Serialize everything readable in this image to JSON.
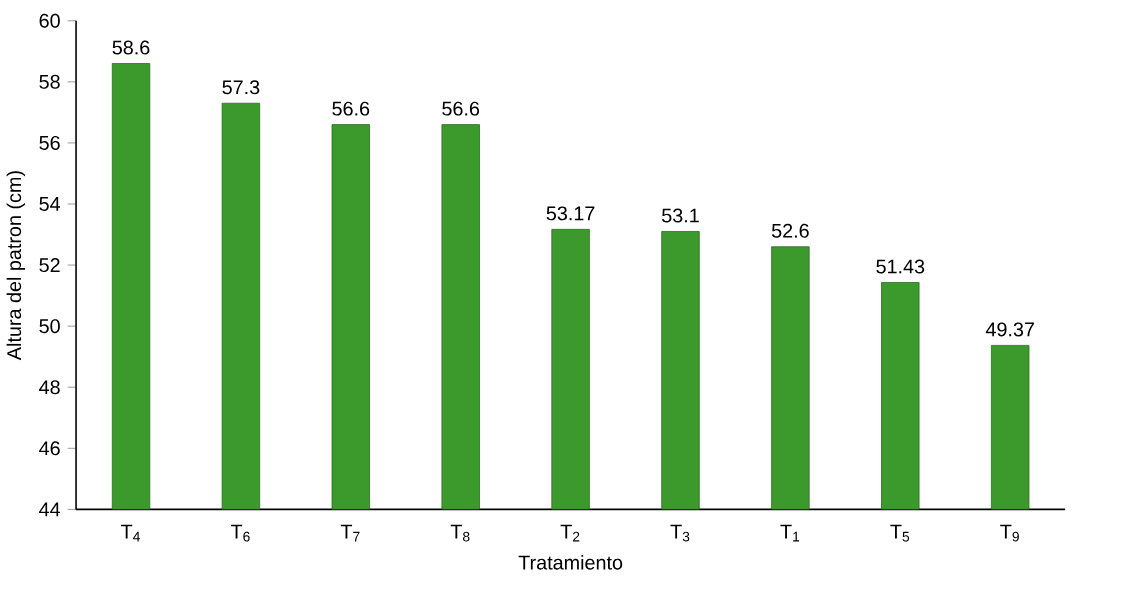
{
  "chart_data": {
    "type": "bar",
    "xlabel": "Tratamiento",
    "ylabel": "Altura del patron (cm)",
    "categories": [
      "T$_{4}$",
      "T$_{6}$",
      "T$_{7}$",
      "T$_{8}$",
      "T$_{2}$",
      "T$_{3}$",
      "T$_{1}$",
      "T$_{5}$",
      "T$_{9}$"
    ],
    "values": [
      58.6,
      57.3,
      56.6,
      56.6,
      53.17,
      53.1,
      52.6,
      51.43,
      49.37
    ],
    "color": "#3c9a2c",
    "ylim": [
      44,
      60
    ],
    "yticks": [
      44,
      46,
      48,
      50,
      52,
      54,
      56,
      58,
      60
    ],
    "data_labels": true
  }
}
